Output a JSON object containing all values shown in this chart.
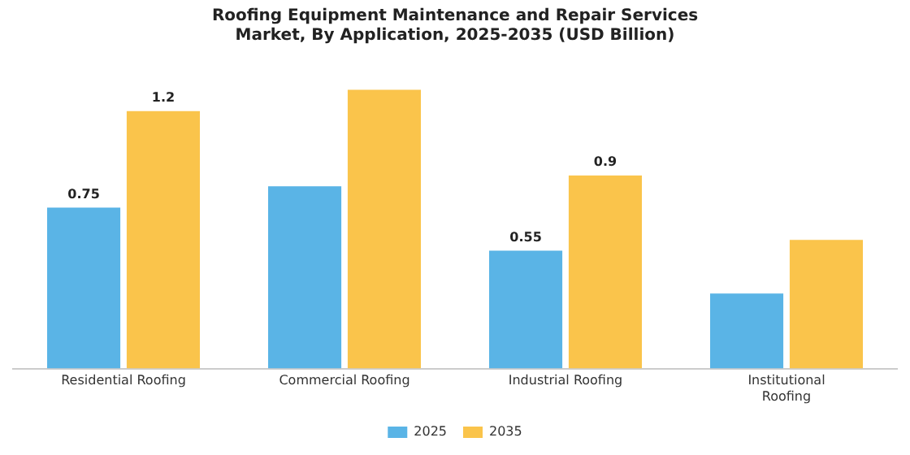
{
  "chart_data": {
    "type": "bar",
    "title": "Roofing Equipment Maintenance and Repair Services Market, By Application, 2025-2035 (USD Billion)",
    "categories": [
      "Residential Roofing",
      "Commercial Roofing",
      "Industrial Roofing",
      "Institutional Roofing"
    ],
    "series": [
      {
        "name": "2025",
        "color": "#5ab4e6",
        "values": [
          0.75,
          0.85,
          0.55,
          0.35
        ],
        "value_labels": [
          "0.75",
          null,
          "0.55",
          null
        ]
      },
      {
        "name": "2035",
        "color": "#fac44b",
        "values": [
          1.2,
          1.3,
          0.9,
          0.6
        ],
        "value_labels": [
          "1.2",
          null,
          "0.9",
          null
        ]
      }
    ],
    "legend": "bottom",
    "grid": false
  }
}
